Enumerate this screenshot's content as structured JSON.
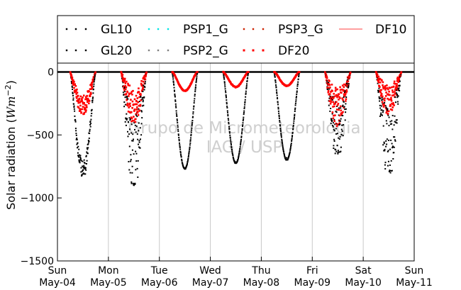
{
  "chart_data": {
    "type": "scatter",
    "title": "",
    "ylabel": "Solar radiation ($Wm^{-2}$)",
    "ylabel_parts": {
      "main": "Solar radiation (",
      "unit": "Wm",
      "exponent": "−2",
      "close": ")"
    },
    "xlabel": "",
    "ylim": [
      -1500,
      70
    ],
    "yticks": [
      0,
      -500,
      -1000,
      -1500
    ],
    "ytick_labels": [
      "0",
      "−500",
      "−1000",
      "−1500"
    ],
    "xlim": [
      0,
      7
    ],
    "x_units": "days since Sun May-04",
    "xticks": [
      {
        "day": "Sun",
        "date": "May-04"
      },
      {
        "day": "Mon",
        "date": "May-05"
      },
      {
        "day": "Tue",
        "date": "May-06"
      },
      {
        "day": "Wed",
        "date": "May-07"
      },
      {
        "day": "Thu",
        "date": "May-08"
      },
      {
        "day": "Fri",
        "date": "May-09"
      },
      {
        "day": "Sat",
        "date": "May-10"
      },
      {
        "day": "Sun",
        "date": "May-11"
      }
    ],
    "grid": "vertical",
    "legend_position": "top (outside, above plot)",
    "legend_columns": 4,
    "watermark": [
      "Grupo de Micrometeorologia",
      "IAG / USP"
    ],
    "series": [
      {
        "name": "GL10",
        "color": "#000000",
        "marker": "dot",
        "daily_minimum": [
          -830,
          -900,
          -770,
          -725,
          -700,
          -650,
          -800
        ]
      },
      {
        "name": "GL20",
        "color": "#000000",
        "marker": "dot",
        "daily_minimum": [
          -830,
          -900,
          -770,
          -725,
          -700,
          -650,
          -800
        ]
      },
      {
        "name": "PSP1_G",
        "color": "#00e5e5",
        "marker": "dot",
        "daily_minimum": []
      },
      {
        "name": "PSP2_G",
        "color": "#808080",
        "marker": "dot",
        "daily_minimum": []
      },
      {
        "name": "PSP3_G",
        "color": "#cc2200",
        "marker": "dot",
        "daily_minimum": []
      },
      {
        "name": "DF20",
        "color": "#ff0000",
        "marker": "square",
        "daily_minimum": [
          -330,
          -390,
          -150,
          -120,
          -110,
          -420,
          -330
        ]
      },
      {
        "name": "DF10",
        "color": "#ff6666",
        "marker": "line",
        "daily_minimum": []
      }
    ],
    "daily_profiles": [
      {
        "day": "May-04",
        "sunrise": 0.25,
        "sunset": 0.75,
        "global_min": -830,
        "diffuse_min": -330,
        "regime": "partly-cloudy"
      },
      {
        "day": "May-05",
        "sunrise": 1.25,
        "sunset": 1.75,
        "global_min": -900,
        "diffuse_min": -390,
        "regime": "cloudy"
      },
      {
        "day": "May-06",
        "sunrise": 2.25,
        "sunset": 2.75,
        "global_min": -770,
        "diffuse_min": -150,
        "regime": "clear"
      },
      {
        "day": "May-07",
        "sunrise": 3.25,
        "sunset": 3.75,
        "global_min": -725,
        "diffuse_min": -120,
        "regime": "clear"
      },
      {
        "day": "May-08",
        "sunrise": 4.25,
        "sunset": 4.75,
        "global_min": -700,
        "diffuse_min": -110,
        "regime": "clear"
      },
      {
        "day": "May-09",
        "sunrise": 5.25,
        "sunset": 5.75,
        "global_min": -650,
        "diffuse_min": -420,
        "regime": "cloudy"
      },
      {
        "day": "May-10",
        "sunrise": 6.25,
        "sunset": 6.75,
        "global_min": -800,
        "diffuse_min": -330,
        "regime": "cloudy"
      }
    ]
  }
}
